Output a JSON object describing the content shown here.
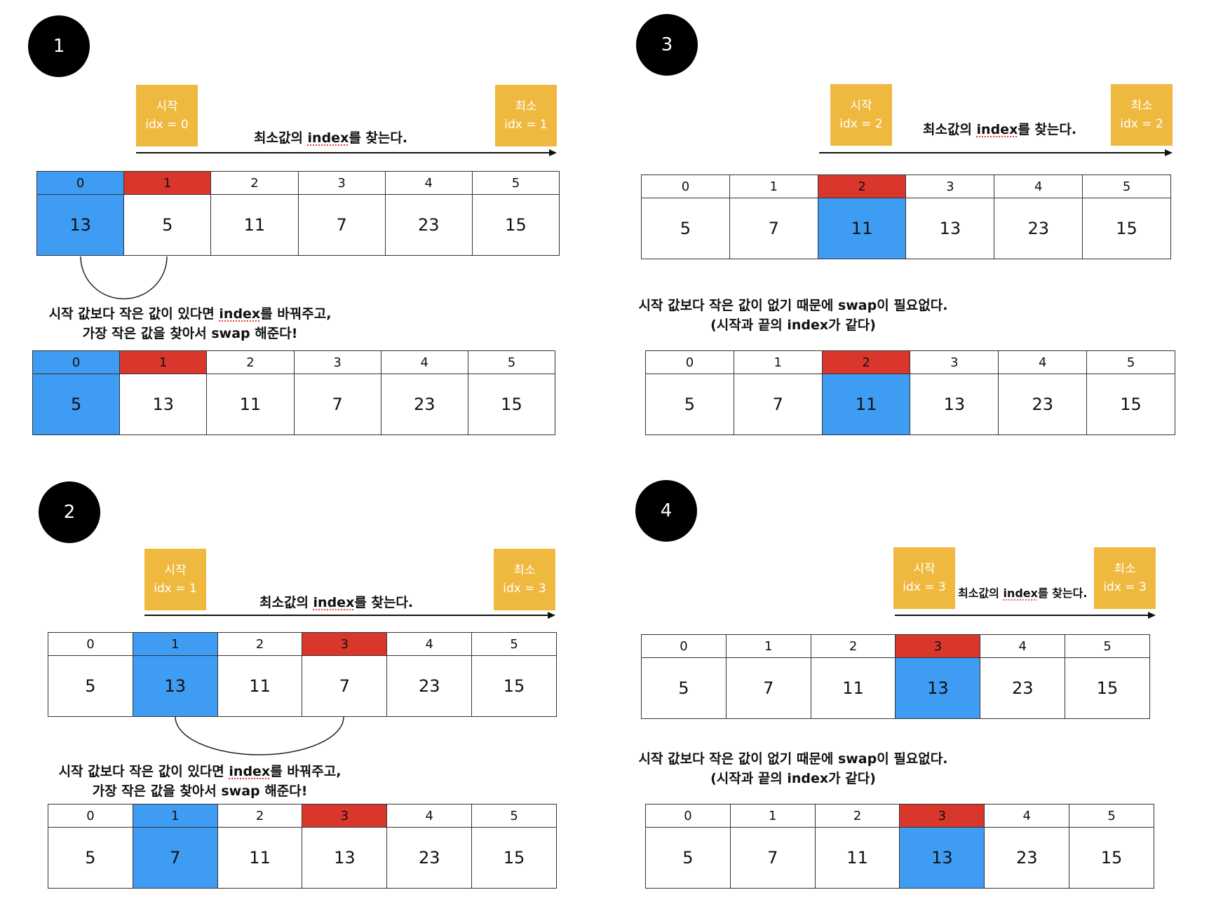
{
  "panels": [
    {
      "step": "1",
      "start_tag": {
        "line1": "시작",
        "line2": "idx = 0"
      },
      "min_tag": {
        "line1": "최소",
        "line2": "idx = 1"
      },
      "find": {
        "before": "최소값의 ",
        "idx": "index",
        "after": "를 찾는다."
      },
      "array_before": {
        "indices": [
          "0",
          "1",
          "2",
          "3",
          "4",
          "5"
        ],
        "values": [
          "13",
          "5",
          "11",
          "7",
          "23",
          "15"
        ]
      },
      "note": {
        "line1_a": "시작 값보다 작은 값이 있다면 ",
        "line1_idx": "index",
        "line1_b": "를 바꿔주고,",
        "line2": "가장 작은 값을 찾아서 swap 해준다!"
      },
      "array_after": {
        "indices": [
          "0",
          "1",
          "2",
          "3",
          "4",
          "5"
        ],
        "values": [
          "5",
          "13",
          "11",
          "7",
          "23",
          "15"
        ]
      }
    },
    {
      "step": "3",
      "start_tag": {
        "line1": "시작",
        "line2": "idx = 2"
      },
      "min_tag": {
        "line1": "최소",
        "line2": "idx = 2"
      },
      "find": {
        "before": "최소값의 ",
        "idx": "index",
        "after": "를 찾는다."
      },
      "array_before": {
        "indices": [
          "0",
          "1",
          "2",
          "3",
          "4",
          "5"
        ],
        "values": [
          "5",
          "7",
          "11",
          "13",
          "23",
          "15"
        ]
      },
      "note": {
        "line1_a": "시작 값보다 작은 값이 없기 때문에 swap이 필요없다.",
        "line1_idx": "",
        "line1_b": "",
        "line2": "(시작과 끝의 index가 같다)"
      },
      "array_after": {
        "indices": [
          "0",
          "1",
          "2",
          "3",
          "4",
          "5"
        ],
        "values": [
          "5",
          "7",
          "11",
          "13",
          "23",
          "15"
        ]
      }
    },
    {
      "step": "2",
      "start_tag": {
        "line1": "시작",
        "line2": "idx = 1"
      },
      "min_tag": {
        "line1": "최소",
        "line2": "idx = 3"
      },
      "find": {
        "before": "최소값의 ",
        "idx": "index",
        "after": "를 찾는다."
      },
      "array_before": {
        "indices": [
          "0",
          "1",
          "2",
          "3",
          "4",
          "5"
        ],
        "values": [
          "5",
          "13",
          "11",
          "7",
          "23",
          "15"
        ]
      },
      "note": {
        "line1_a": "시작 값보다 작은 값이 있다면 ",
        "line1_idx": "index",
        "line1_b": "를 바꿔주고,",
        "line2": "가장 작은 값을 찾아서 swap 해준다!"
      },
      "array_after": {
        "indices": [
          "0",
          "1",
          "2",
          "3",
          "4",
          "5"
        ],
        "values": [
          "5",
          "7",
          "11",
          "13",
          "23",
          "15"
        ]
      }
    },
    {
      "step": "4",
      "start_tag": {
        "line1": "시작",
        "line2": "idx = 3"
      },
      "min_tag": {
        "line1": "최소",
        "line2": "idx = 3"
      },
      "find": {
        "before": "최소값의 ",
        "idx": "index",
        "after": "를 찾는다."
      },
      "array_before": {
        "indices": [
          "0",
          "1",
          "2",
          "3",
          "4",
          "5"
        ],
        "values": [
          "5",
          "7",
          "11",
          "13",
          "23",
          "15"
        ]
      },
      "note": {
        "line1_a": "시작 값보다 작은 값이 없기 때문에 swap이 필요없다.",
        "line1_idx": "",
        "line1_b": "",
        "line2": "(시작과 끝의 index가 같다)"
      },
      "array_after": {
        "indices": [
          "0",
          "1",
          "2",
          "3",
          "4",
          "5"
        ],
        "values": [
          "5",
          "7",
          "11",
          "13",
          "23",
          "15"
        ]
      }
    }
  ],
  "colors": {
    "start_highlight": "#3f9cf3",
    "min_highlight": "#d9372b",
    "tag": "#efb940"
  }
}
